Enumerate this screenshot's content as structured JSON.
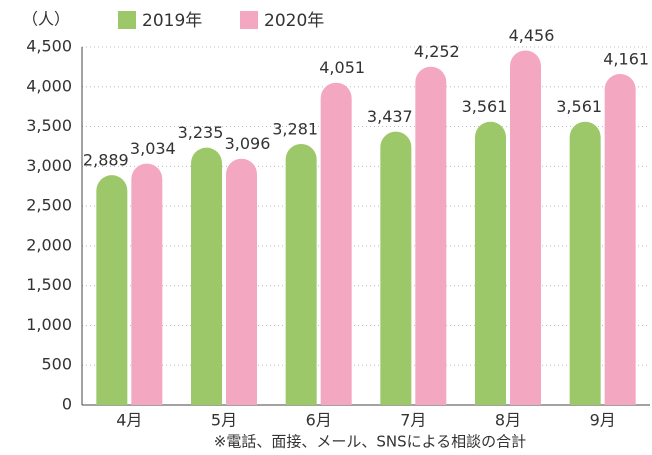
{
  "chart_data": {
    "type": "bar",
    "y_label": "（人）",
    "footnote": "※電話、面接、メール、SNSによる相談の合計",
    "categories": [
      "4月",
      "5月",
      "6月",
      "7月",
      "8月",
      "9月"
    ],
    "series": [
      {
        "name": "2019年",
        "color": "#9dc86a",
        "values": [
          2889,
          3235,
          3281,
          3437,
          3561,
          3561
        ],
        "value_labels": [
          "2,889",
          "3,235",
          "3,281",
          "3,437",
          "3,561",
          "3,561"
        ]
      },
      {
        "name": "2020年",
        "color": "#f4a7c0",
        "values": [
          3034,
          3096,
          4051,
          4252,
          4456,
          4161
        ],
        "value_labels": [
          "3,034",
          "3,096",
          "4,051",
          "4,252",
          "4,456",
          "4,161"
        ]
      }
    ],
    "ylim": [
      0,
      4500
    ],
    "yticks": [
      0,
      500,
      {
        "value": 1000,
        "label": "1,000"
      },
      {
        "value": 1500,
        "label": "1,500"
      },
      {
        "value": 2000,
        "label": "2,000"
      },
      {
        "value": 2500,
        "label": "2,500"
      },
      {
        "value": 3000,
        "label": "3,000"
      },
      {
        "value": 3500,
        "label": "3,500"
      },
      {
        "value": 4000,
        "label": "4,000"
      },
      {
        "value": 4500,
        "label": "4,500"
      }
    ],
    "grid": true
  }
}
